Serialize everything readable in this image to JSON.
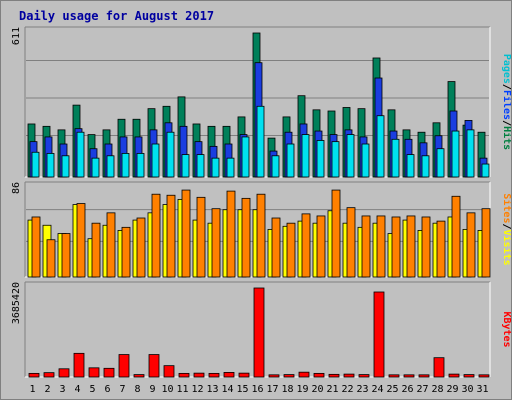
{
  "chart_data": [
    {
      "type": "bar",
      "title": "Daily usage for August 2017",
      "ymax_label": "611",
      "ylim": [
        0,
        611
      ],
      "grid": true,
      "categories": [
        "1",
        "2",
        "3",
        "4",
        "5",
        "6",
        "7",
        "8",
        "9",
        "10",
        "11",
        "12",
        "13",
        "14",
        "15",
        "16",
        "17",
        "18",
        "19",
        "20",
        "21",
        "22",
        "23",
        "24",
        "25",
        "26",
        "27",
        "28",
        "29",
        "30",
        "31"
      ],
      "weekend_days": [
        5,
        6,
        12,
        13,
        19,
        20,
        26,
        27
      ],
      "side_label": [
        {
          "text": "Pages",
          "color": "#00c0d0"
        },
        {
          "text": "/",
          "color": "#000000"
        },
        {
          "text": "Files",
          "color": "#0040ff"
        },
        {
          "text": "/",
          "color": "#000000"
        },
        {
          "text": "Hits",
          "color": "#008040"
        }
      ],
      "series": [
        {
          "name": "Hits",
          "color": "#00805a",
          "values": [
            225,
            215,
            200,
            305,
            180,
            200,
            245,
            245,
            290,
            300,
            340,
            225,
            215,
            215,
            255,
            611,
            165,
            255,
            345,
            285,
            280,
            295,
            290,
            505,
            285,
            200,
            190,
            230,
            405,
            220,
            190
          ]
        },
        {
          "name": "Files",
          "color": "#1a3de0",
          "values": [
            150,
            170,
            140,
            205,
            120,
            140,
            170,
            170,
            200,
            230,
            215,
            150,
            130,
            140,
            180,
            485,
            110,
            190,
            225,
            195,
            180,
            200,
            170,
            420,
            195,
            160,
            145,
            175,
            280,
            240,
            80
          ]
        },
        {
          "name": "Pages",
          "color": "#00e0f0",
          "values": [
            105,
            100,
            90,
            190,
            80,
            90,
            100,
            100,
            140,
            190,
            95,
            95,
            80,
            80,
            170,
            300,
            90,
            140,
            180,
            155,
            150,
            180,
            140,
            260,
            160,
            95,
            90,
            120,
            195,
            200,
            55
          ]
        }
      ]
    },
    {
      "type": "bar",
      "ymax_label": "86",
      "ylim": [
        0,
        86
      ],
      "grid": true,
      "side_label": [
        {
          "text": "Sites",
          "color": "#ff8000"
        },
        {
          "text": "/",
          "color": "#000000"
        },
        {
          "text": "Visits",
          "color": "#ffff00"
        }
      ],
      "series": [
        {
          "name": "Sites",
          "color": "#ff8000",
          "values": [
            58,
            36,
            42,
            71,
            52,
            62,
            48,
            57,
            80,
            79,
            84,
            77,
            66,
            83,
            76,
            80,
            57,
            52,
            61,
            59,
            84,
            67,
            59,
            59,
            58,
            59,
            58,
            54,
            78,
            62,
            66
          ]
        },
        {
          "name": "Visits",
          "color": "#ffff00",
          "values": [
            55,
            50,
            42,
            70,
            37,
            50,
            45,
            55,
            62,
            70,
            75,
            55,
            52,
            65,
            65,
            65,
            46,
            49,
            54,
            52,
            64,
            52,
            48,
            52,
            42,
            55,
            45,
            52,
            58,
            46,
            45
          ]
        }
      ]
    },
    {
      "type": "bar",
      "ymax_label": "3685420",
      "ylim": [
        0,
        3685420
      ],
      "grid": false,
      "side_label": [
        {
          "text": "KBytes",
          "color": "#ff0000"
        }
      ],
      "series": [
        {
          "name": "KBytes",
          "color": "#ff0000",
          "values": [
            150000,
            180000,
            340000,
            980000,
            380000,
            360000,
            930000,
            100000,
            930000,
            470000,
            150000,
            160000,
            150000,
            190000,
            160000,
            3685420,
            90000,
            100000,
            200000,
            150000,
            110000,
            120000,
            100000,
            3520000,
            90000,
            90000,
            90000,
            800000,
            120000,
            100000,
            90000
          ]
        }
      ]
    }
  ]
}
